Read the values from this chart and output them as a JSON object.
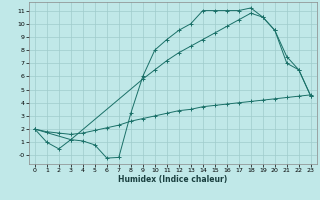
{
  "xlabel": "Humidex (Indice chaleur)",
  "background_color": "#c0e8e8",
  "grid_color": "#a0cccc",
  "line_color": "#1a7068",
  "xlim": [
    -0.5,
    23.5
  ],
  "ylim": [
    -0.65,
    11.65
  ],
  "xticks": [
    0,
    1,
    2,
    3,
    4,
    5,
    6,
    7,
    8,
    9,
    10,
    11,
    12,
    13,
    14,
    15,
    16,
    17,
    18,
    19,
    20,
    21,
    22,
    23
  ],
  "yticks": [
    0,
    1,
    2,
    3,
    4,
    5,
    6,
    7,
    8,
    9,
    10,
    11
  ],
  "ytick_labels": [
    "-0",
    "1",
    "2",
    "3",
    "4",
    "5",
    "6",
    "7",
    "8",
    "9",
    "10",
    "11"
  ],
  "line1_x": [
    0,
    1,
    2,
    3,
    4,
    5,
    6,
    7,
    8,
    9,
    10,
    11,
    12,
    13,
    14,
    15,
    16,
    17,
    18,
    19,
    20,
    21,
    22,
    23
  ],
  "line1_y": [
    2.0,
    1.0,
    0.5,
    1.2,
    1.1,
    0.8,
    -0.2,
    -0.15,
    3.2,
    6.0,
    8.0,
    8.8,
    9.5,
    10.0,
    11.0,
    11.0,
    11.0,
    11.0,
    11.2,
    10.5,
    9.5,
    7.0,
    6.5,
    4.5
  ],
  "line2_x": [
    0,
    3,
    9,
    10,
    11,
    12,
    13,
    14,
    15,
    16,
    17,
    18,
    19,
    20,
    21,
    22,
    23
  ],
  "line2_y": [
    2.0,
    1.2,
    5.8,
    6.5,
    7.2,
    7.8,
    8.3,
    8.8,
    9.3,
    9.8,
    10.3,
    10.8,
    10.5,
    9.5,
    7.5,
    6.5,
    4.5
  ],
  "line3_x": [
    0,
    1,
    2,
    3,
    4,
    5,
    6,
    7,
    8,
    9,
    10,
    11,
    12,
    13,
    14,
    15,
    16,
    17,
    18,
    19,
    20,
    21,
    22,
    23
  ],
  "line3_y": [
    2.0,
    1.8,
    1.7,
    1.6,
    1.7,
    1.9,
    2.1,
    2.3,
    2.6,
    2.8,
    3.0,
    3.2,
    3.4,
    3.5,
    3.7,
    3.8,
    3.9,
    4.0,
    4.1,
    4.2,
    4.3,
    4.4,
    4.5,
    4.6
  ]
}
